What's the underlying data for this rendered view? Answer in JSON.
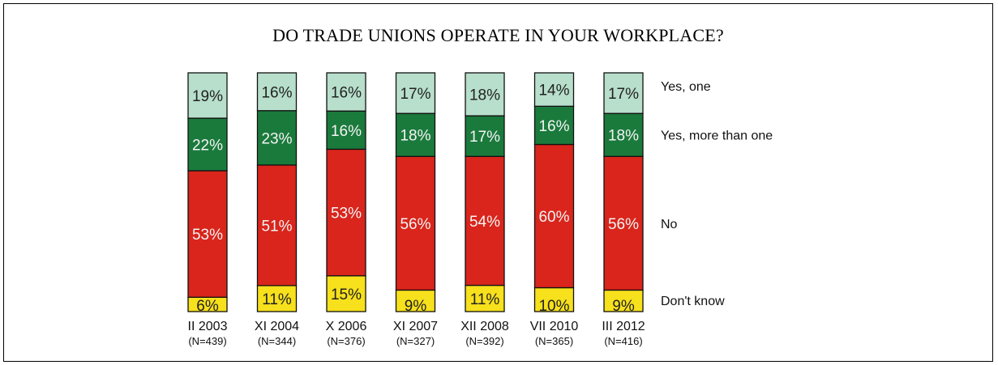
{
  "chart_data": {
    "type": "bar",
    "stacked": true,
    "orientation": "vertical",
    "title": "DO TRADE UNIONS OPERATE IN YOUR WORKPLACE?",
    "categories": [
      "II 2003",
      "XI 2004",
      "X 2006",
      "XI 2007",
      "XII 2008",
      "VII 2010",
      "III 2012"
    ],
    "sample_sizes": [
      "(N=439)",
      "(N=344)",
      "(N=376)",
      "(N=327)",
      "(N=392)",
      "(N=365)",
      "(N=416)"
    ],
    "series": [
      {
        "name": "Don't know",
        "color": "#f7e01c",
        "text_color": "#222222",
        "values": [
          6,
          11,
          15,
          9,
          11,
          10,
          9
        ]
      },
      {
        "name": "No",
        "color": "#d9251c",
        "text_color": "#f4f4f4",
        "values": [
          53,
          51,
          53,
          56,
          54,
          60,
          56
        ]
      },
      {
        "name": "Yes, more than one",
        "color": "#1a7a3c",
        "text_color": "#f4f4f4",
        "values": [
          22,
          23,
          16,
          18,
          17,
          16,
          18
        ]
      },
      {
        "name": "Yes, one",
        "color": "#b7dfcb",
        "text_color": "#222222",
        "values": [
          19,
          16,
          16,
          17,
          18,
          14,
          17
        ]
      }
    ],
    "value_suffix": "%",
    "legend_placement": "right",
    "grid": false
  }
}
